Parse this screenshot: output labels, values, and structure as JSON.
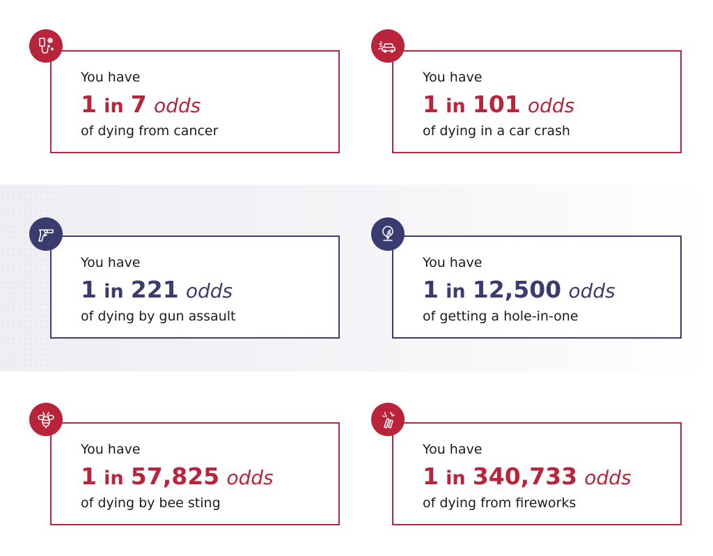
{
  "cards": [
    {
      "intro": "You have",
      "one": "1",
      "in": "in",
      "number": "7",
      "word": "odds",
      "outro": "of dying from cancer",
      "icon": "iv-drip-icon",
      "color": "#b9243a"
    },
    {
      "intro": "You have",
      "one": "1",
      "in": "in",
      "number": "101",
      "word": "odds",
      "outro": "of dying in a car crash",
      "icon": "car-crash-icon",
      "color": "#b9243a"
    },
    {
      "intro": "You have",
      "one": "1",
      "in": "in",
      "number": "221",
      "word": "odds",
      "outro": "of dying by gun assault",
      "icon": "revolver-icon",
      "color": "#3a3b6e"
    },
    {
      "intro": "You have",
      "one": "1",
      "in": "in",
      "number": "12,500",
      "word": "odds",
      "outro": "of getting a hole-in-one",
      "icon": "golf-ball-icon",
      "color": "#3a3b6e"
    },
    {
      "intro": "You have",
      "one": "1",
      "in": "in",
      "number": "57,825",
      "word": "odds",
      "outro": "of dying by bee sting",
      "icon": "bee-icon",
      "color": "#b9243a"
    },
    {
      "intro": "You have",
      "one": "1",
      "in": "in",
      "number": "340,733",
      "word": "odds",
      "outro": "of dying from fireworks",
      "icon": "fireworks-icon",
      "color": "#b9243a"
    }
  ]
}
